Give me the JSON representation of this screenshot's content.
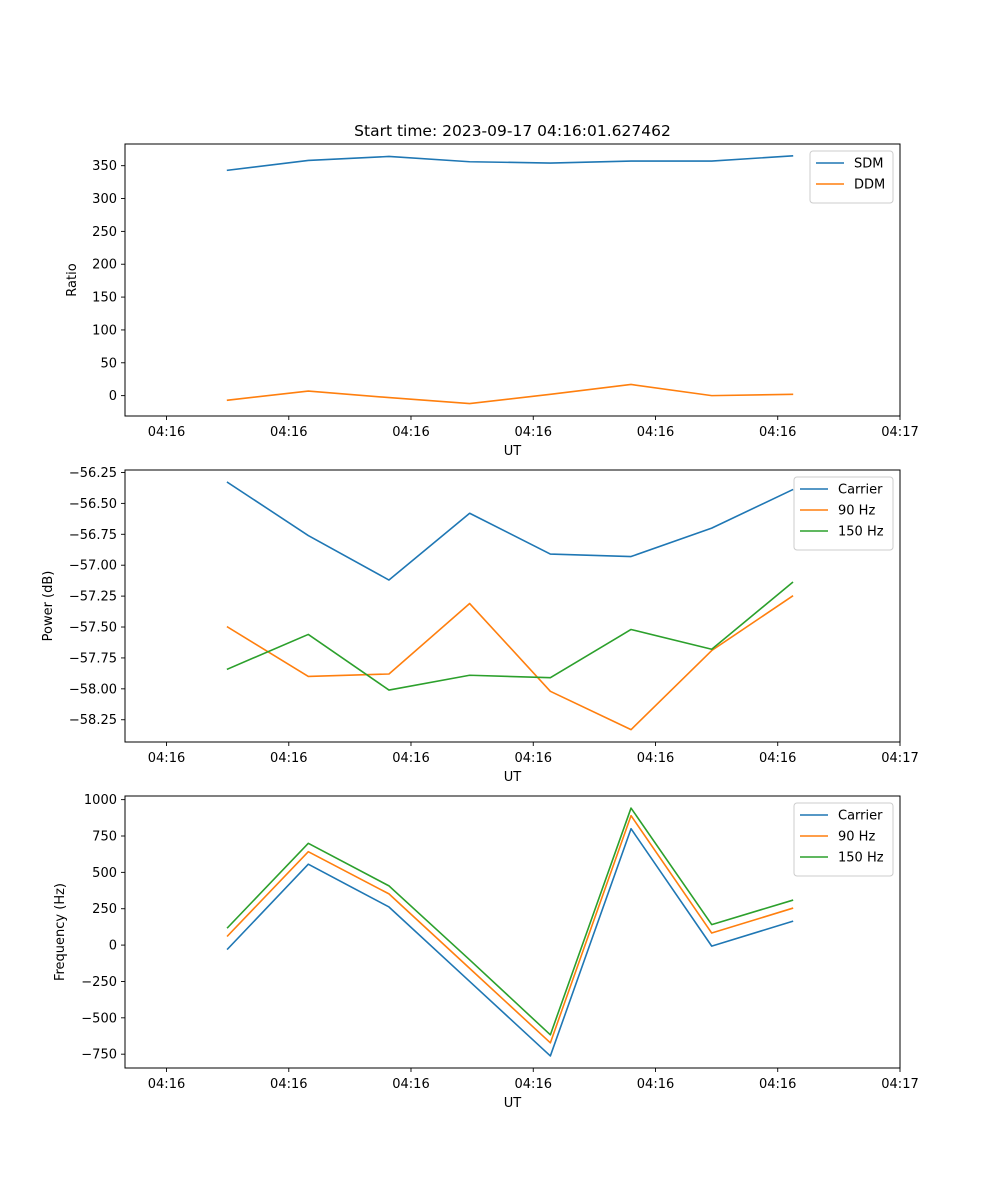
{
  "figure": {
    "title": "Start time: 2023-09-17 04:16:01.627462"
  },
  "chart_data": [
    {
      "type": "line",
      "title": "Start time: 2023-09-17 04:16:01.627462",
      "xlabel": "UT",
      "ylabel": "Ratio",
      "xlim": [
        -0.0566,
        1.0
      ],
      "ylim": [
        -31,
        383
      ],
      "x_ticks": [
        0,
        0.1667,
        0.3333,
        0.5,
        0.6667,
        0.8333,
        1.0
      ],
      "x_tick_labels": [
        "04:16",
        "04:16",
        "04:16",
        "04:16",
        "04:16",
        "04:16",
        "04:17"
      ],
      "y_ticks": [
        0,
        50,
        100,
        150,
        200,
        250,
        300,
        350
      ],
      "y_tick_labels": [
        "0",
        "50",
        "100",
        "150",
        "200",
        "250",
        "300",
        "350"
      ],
      "legend_position": "upper-right",
      "x": [
        0.0833,
        0.1933,
        0.3033,
        0.4133,
        0.5233,
        0.6333,
        0.7433,
        0.8533
      ],
      "series": [
        {
          "name": "SDM",
          "color": "#1f77b4",
          "values": [
            343,
            358,
            364,
            356,
            354,
            357,
            357,
            365
          ]
        },
        {
          "name": "DDM",
          "color": "#ff7f0e",
          "values": [
            -7,
            7,
            -3,
            -12,
            2,
            17,
            0,
            2
          ]
        }
      ]
    },
    {
      "type": "line",
      "title": "",
      "xlabel": "UT",
      "ylabel": "Power (dB)",
      "xlim": [
        -0.0566,
        1.0
      ],
      "ylim": [
        -58.43,
        -56.23
      ],
      "x_ticks": [
        0,
        0.1667,
        0.3333,
        0.5,
        0.6667,
        0.8333,
        1.0
      ],
      "x_tick_labels": [
        "04:16",
        "04:16",
        "04:16",
        "04:16",
        "04:16",
        "04:16",
        "04:17"
      ],
      "y_ticks": [
        -58.25,
        -58.0,
        -57.75,
        -57.5,
        -57.25,
        -57.0,
        -56.75,
        -56.5,
        -56.25
      ],
      "y_tick_labels": [
        "−58.25",
        "−58.00",
        "−57.75",
        "−57.50",
        "−57.25",
        "−57.00",
        "−56.75",
        "−56.50",
        "−56.25"
      ],
      "legend_position": "upper-right",
      "x": [
        0.0833,
        0.1933,
        0.3033,
        0.4133,
        0.5233,
        0.6333,
        0.7433,
        0.8533
      ],
      "series": [
        {
          "name": "Carrier",
          "color": "#1f77b4",
          "values": [
            -56.33,
            -56.76,
            -57.12,
            -56.58,
            -56.91,
            -56.93,
            -56.7,
            -56.39
          ]
        },
        {
          "name": "90 Hz",
          "color": "#ff7f0e",
          "values": [
            -57.5,
            -57.9,
            -57.88,
            -57.31,
            -58.02,
            -58.33,
            -57.69,
            -57.25
          ]
        },
        {
          "name": "150 Hz",
          "color": "#2ca02c",
          "values": [
            -57.84,
            -57.56,
            -58.01,
            -57.89,
            -57.91,
            -57.52,
            -57.68,
            -57.14
          ]
        }
      ]
    },
    {
      "type": "line",
      "title": "",
      "xlabel": "UT",
      "ylabel": "Frequency (Hz)",
      "xlim": [
        -0.0566,
        1.0
      ],
      "ylim": [
        -845,
        1025
      ],
      "x_ticks": [
        0,
        0.1667,
        0.3333,
        0.5,
        0.6667,
        0.8333,
        1.0
      ],
      "x_tick_labels": [
        "04:16",
        "04:16",
        "04:16",
        "04:16",
        "04:16",
        "04:16",
        "04:17"
      ],
      "y_ticks": [
        -750,
        -500,
        -250,
        0,
        250,
        500,
        750,
        1000
      ],
      "y_tick_labels": [
        "−750",
        "−500",
        "−250",
        "0",
        "250",
        "500",
        "750",
        "1000"
      ],
      "legend_position": "upper-right",
      "x": [
        0.0833,
        0.1933,
        0.3033,
        0.4133,
        0.5233,
        0.6333,
        0.7433,
        0.8533
      ],
      "series": [
        {
          "name": "Carrier",
          "color": "#1f77b4",
          "values": [
            -27,
            556,
            262,
            -250,
            -762,
            800,
            -7,
            163
          ]
        },
        {
          "name": "90 Hz",
          "color": "#ff7f0e",
          "values": [
            63,
            642,
            352,
            -160,
            -672,
            890,
            83,
            253
          ]
        },
        {
          "name": "150 Hz",
          "color": "#2ca02c",
          "values": [
            120,
            700,
            407,
            -101,
            -617,
            942,
            141,
            308
          ]
        }
      ]
    }
  ]
}
